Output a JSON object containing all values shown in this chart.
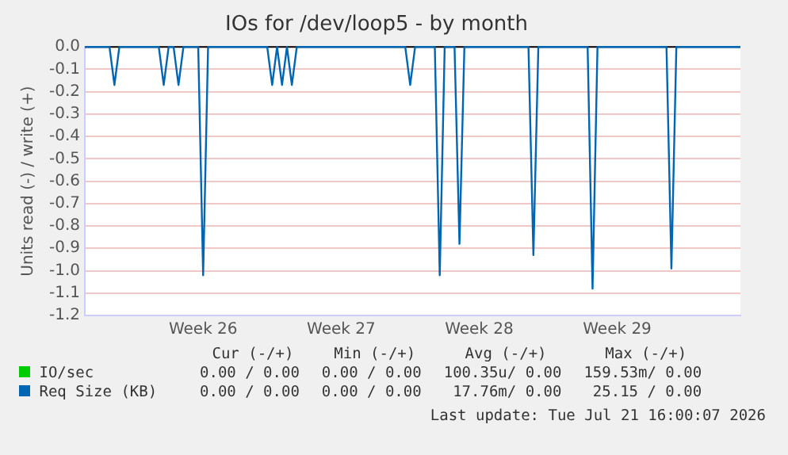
{
  "chart_data": {
    "type": "line",
    "title": "IOs for /dev/loop5 - by month",
    "ylabel": "Units read (-) / write (+)",
    "categories": [
      null,
      null,
      null,
      null,
      null,
      null,
      null,
      null,
      null,
      null,
      null,
      null,
      null,
      null,
      null,
      null,
      null,
      null,
      null,
      null,
      null,
      null,
      null,
      null,
      "Week 26",
      null,
      null,
      null,
      null,
      null,
      null,
      null,
      null,
      null,
      null,
      null,
      null,
      null,
      null,
      null,
      null,
      null,
      null,
      null,
      null,
      null,
      null,
      null,
      null,
      null,
      null,
      null,
      "Week 27",
      null,
      null,
      null,
      null,
      null,
      null,
      null,
      null,
      null,
      null,
      null,
      null,
      null,
      null,
      null,
      null,
      null,
      null,
      null,
      null,
      null,
      null,
      null,
      null,
      null,
      null,
      null,
      "Week 28",
      null,
      null,
      null,
      null,
      null,
      null,
      null,
      null,
      null,
      null,
      null,
      null,
      null,
      null,
      null,
      null,
      null,
      null,
      null,
      null,
      null,
      null,
      null,
      null,
      null,
      null,
      null,
      "Week 29",
      null,
      null,
      null,
      null,
      null,
      null,
      null,
      null,
      null,
      null,
      null,
      null,
      null,
      null,
      null,
      null,
      null,
      null,
      null,
      null,
      null,
      null,
      null,
      null,
      null
    ],
    "ylim": [
      -1.2,
      0
    ],
    "yticks": [
      {
        "value": 0,
        "label": "0.0"
      },
      -0.1,
      -0.2,
      -0.3,
      -0.4,
      -0.5,
      -0.6,
      -0.7,
      -0.8,
      -0.9,
      {
        "value": -1,
        "label": "-1.0"
      },
      -1.1,
      -1.2
    ],
    "grid": "y",
    "legend": "bottom",
    "marker": "none",
    "line_style": "solid",
    "series": [
      {
        "name": "IO/sec",
        "color": "#00cc00",
        "values": [
          null,
          null,
          null,
          null,
          null,
          null,
          null,
          null,
          null,
          null,
          null,
          null,
          null,
          null,
          null,
          null,
          null,
          null,
          null,
          null,
          null,
          null,
          null,
          null,
          null,
          null,
          null,
          null,
          null,
          null,
          null,
          null,
          null,
          null,
          null,
          null,
          null,
          null,
          null,
          null,
          null,
          null,
          null,
          null,
          null,
          null,
          null,
          null,
          null,
          null,
          null,
          null,
          null,
          null,
          null,
          null,
          null,
          null,
          null,
          null,
          null,
          null,
          null,
          null,
          null,
          null,
          null,
          null,
          null,
          null,
          null,
          null,
          null,
          null,
          null,
          null,
          null,
          null,
          null,
          null,
          null,
          null,
          null,
          null,
          null,
          null,
          null,
          null,
          null,
          null,
          null,
          null,
          null,
          null,
          null,
          null,
          null,
          null,
          null,
          null,
          null,
          null,
          null,
          null,
          null,
          null,
          null,
          null,
          null,
          null,
          null,
          null,
          null,
          null,
          null,
          null,
          null,
          null,
          null,
          null,
          null,
          null,
          null,
          null,
          null,
          null,
          null,
          null,
          null,
          null,
          null,
          null,
          null,
          null
        ]
      },
      {
        "name": "Req Size (KB)",
        "color": "#0066b3",
        "values": [
          0,
          0,
          0,
          0,
          0,
          0,
          -0.17,
          0,
          0,
          0,
          0,
          0,
          0,
          0,
          0,
          0,
          -0.17,
          0,
          0,
          -0.17,
          0,
          0,
          0,
          0,
          -1.02,
          0,
          0,
          0,
          0,
          0,
          0,
          0,
          0,
          0,
          0,
          0,
          0,
          0,
          -0.17,
          0,
          -0.17,
          0,
          -0.17,
          0,
          0,
          0,
          0,
          0,
          0,
          0,
          0,
          0,
          0,
          0,
          0,
          0,
          0,
          0,
          0,
          0,
          0,
          0,
          0,
          0,
          0,
          0,
          -0.17,
          0,
          0,
          0,
          0,
          0,
          -1.02,
          0,
          0,
          0,
          -0.88,
          0,
          0,
          0,
          0,
          0,
          0,
          0,
          0,
          0,
          0,
          0,
          0,
          0,
          0,
          -0.93,
          0,
          0,
          0,
          0,
          0,
          0,
          0,
          0,
          0,
          0,
          0,
          -1.08,
          0,
          0,
          0,
          0,
          0,
          0,
          0,
          0,
          0,
          0,
          0,
          0,
          0,
          0,
          0,
          -0.99,
          0,
          0,
          0,
          0,
          0,
          0,
          0,
          0,
          0,
          0,
          0,
          0,
          0,
          0
        ]
      }
    ],
    "annotations": [
      "Cur (-/+)",
      "Min (-/+)",
      "Avg (-/+)",
      "Max (-/+)",
      "0.00 / 0.00",
      "0.00 / 0.00",
      "100.35u/ 0.00",
      "159.53m/ 0.00",
      "0.00 / 0.00",
      "0.00 / 0.00",
      "17.76m/ 0.00",
      "25.15 / 0.00",
      "Last update: Tue Jul 21 16:00:07 2026"
    ]
  }
}
